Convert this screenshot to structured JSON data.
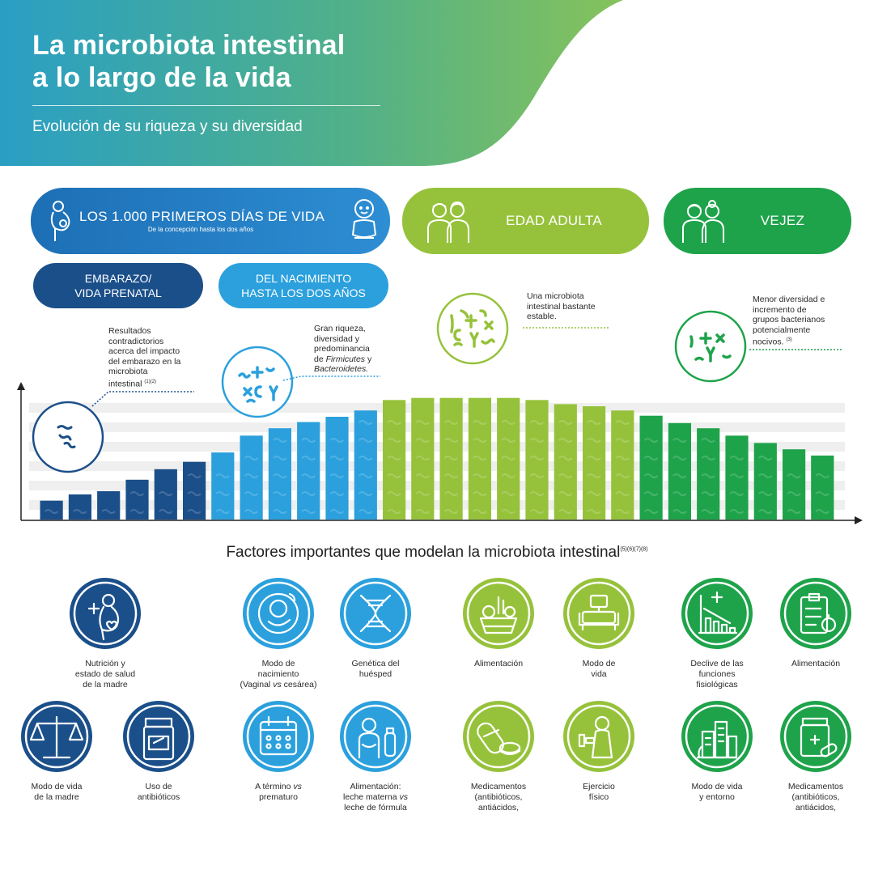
{
  "header": {
    "title_line1": "La microbiota intestinal",
    "title_line2": "a lo largo de la vida",
    "subtitle": "Evolución de su riqueza y su diversidad"
  },
  "stages": {
    "first_days": {
      "title": "LOS 1.000 PRIMEROS DÍAS DE VIDA",
      "subtitle": "De la concepción hasta los dos años"
    },
    "adult": "EDAD ADULTA",
    "old_age": "VEJEZ",
    "prenatal_line1": "EMBARAZO/",
    "prenatal_line2": "VIDA PRENATAL",
    "birth_line1": "DEL NACIMIENTO",
    "birth_line2": "HASTA LOS DOS AÑOS"
  },
  "notes": {
    "prenatal": [
      "Resultados",
      "contradictorios",
      "acerca del impacto",
      "del embarazo en la",
      "microbiota",
      "intestinal"
    ],
    "prenatal_ref": "(1)(2)",
    "infant": [
      "Gran riqueza,",
      "diversidad y",
      "predominancia",
      "de"
    ],
    "infant_firmicutes": "Firmicutes",
    "infant_y": " y",
    "infant_bacteroidetes": "Bacteroidetes.",
    "adult": [
      "Una microbiota",
      "intestinal bastante",
      "estable."
    ],
    "old": [
      "Menor diversidad e",
      "incremento de",
      "grupos bacterianos",
      "potencialmente",
      "nocivos."
    ],
    "old_ref": "(3)"
  },
  "chart_data": {
    "type": "bar",
    "categories": [
      "1",
      "2",
      "3",
      "4",
      "5",
      "6",
      "7",
      "8",
      "9",
      "10",
      "11",
      "12",
      "13",
      "14",
      "15",
      "16",
      "17",
      "18",
      "19",
      "20",
      "21",
      "22",
      "23",
      "24",
      "25",
      "26",
      "27",
      "28"
    ],
    "values": [
      18,
      24,
      27,
      38,
      48,
      55,
      64,
      80,
      87,
      93,
      98,
      104,
      114,
      116,
      116,
      116,
      116,
      114,
      110,
      108,
      104,
      99,
      92,
      87,
      80,
      73,
      67,
      61
    ],
    "stage_colors": [
      "#1b4f8a",
      "#1b4f8a",
      "#1b4f8a",
      "#1b4f8a",
      "#1b4f8a",
      "#1b4f8a",
      "#2ba0dd",
      "#2ba0dd",
      "#2ba0dd",
      "#2ba0dd",
      "#2ba0dd",
      "#2ba0dd",
      "#96c23b",
      "#96c23b",
      "#96c23b",
      "#96c23b",
      "#96c23b",
      "#96c23b",
      "#96c23b",
      "#96c23b",
      "#96c23b",
      "#1ea34a",
      "#1ea34a",
      "#1ea34a",
      "#1ea34a",
      "#1ea34a",
      "#1ea34a",
      "#1ea34a"
    ],
    "ylim": [
      0,
      125
    ],
    "grid": true
  },
  "factors": {
    "title": "Factores importantes que modelan la microbiota intestinal",
    "title_ref": "(5)(6)(7)(8)",
    "items": [
      {
        "label_lines": [
          "Nutrición y",
          "estado de salud",
          "de la madre"
        ],
        "color": "#1b4f8a",
        "icon": "pregnant-woman-icon"
      },
      {
        "label_lines": [
          "Modo de vida",
          "de la madre"
        ],
        "color": "#1b4f8a",
        "icon": "scale-icon"
      },
      {
        "label_lines": [
          "Uso de",
          "antibióticos"
        ],
        "color": "#1b4f8a",
        "icon": "pill-bottle-icon"
      },
      {
        "label_lines": [
          "Modo de",
          "nacimiento"
        ],
        "label_extra_pre": "(Vaginal ",
        "label_extra_vs": "vs",
        "label_extra_post": " cesárea)",
        "color": "#2ba0dd",
        "icon": "baby-icon"
      },
      {
        "label_lines": [
          "Genética del",
          "huésped"
        ],
        "color": "#2ba0dd",
        "icon": "dna-icon"
      },
      {
        "label_pre": "A término ",
        "label_vs": "vs",
        "label_post_lines": [
          "prematuro"
        ],
        "color": "#2ba0dd",
        "icon": "calendar-icon"
      },
      {
        "label_lines": [
          "Alimentación:"
        ],
        "label_pre2": "leche materna ",
        "label_vs2": "vs",
        "label_post2": "leche de fórmula",
        "color": "#2ba0dd",
        "icon": "breastfeeding-icon"
      },
      {
        "label_lines": [
          "Alimentación"
        ],
        "color": "#96c23b",
        "icon": "groceries-icon"
      },
      {
        "label_lines": [
          "Modo de",
          "vida"
        ],
        "color": "#96c23b",
        "icon": "sofa-icon"
      },
      {
        "label_lines": [
          "Medicamentos",
          "(antibióticos,",
          "antiácidos,"
        ],
        "color": "#96c23b",
        "icon": "pills-icon"
      },
      {
        "label_lines": [
          "Ejercicio",
          "físico"
        ],
        "color": "#96c23b",
        "icon": "exercise-icon"
      },
      {
        "label_lines": [
          "Declive de las",
          "funciones",
          "fisiológicas"
        ],
        "color": "#1ea34a",
        "icon": "decline-chart-icon"
      },
      {
        "label_lines": [
          "Alimentación"
        ],
        "color": "#1ea34a",
        "icon": "diet-clipboard-icon"
      },
      {
        "label_lines": [
          "Modo de vida",
          "y entorno"
        ],
        "color": "#1ea34a",
        "icon": "city-icon"
      },
      {
        "label_lines": [
          "Medicamentos",
          "(antibióticos,",
          "antiácidos,"
        ],
        "color": "#1ea34a",
        "icon": "medicine-icon"
      }
    ]
  }
}
